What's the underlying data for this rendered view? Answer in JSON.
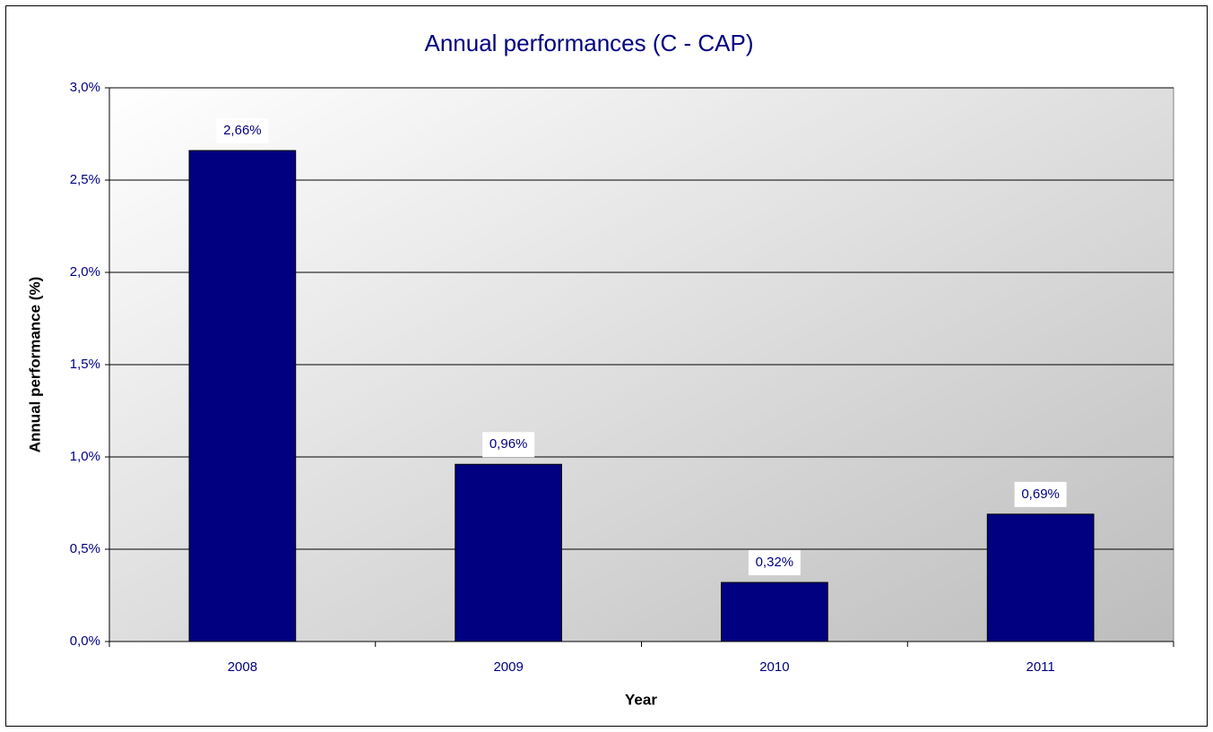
{
  "chart_data": {
    "type": "bar",
    "title": "Annual performances (C - CAP)",
    "x_label": "Year",
    "y_label": "Annual performance (%)",
    "categories": [
      "2008",
      "2009",
      "2010",
      "2011"
    ],
    "values": [
      2.66,
      0.96,
      0.32,
      0.69
    ],
    "value_labels": [
      "2,66%",
      "0,96%",
      "0,32%",
      "0,69%"
    ],
    "color": "#000080",
    "ylim": [
      0,
      3
    ],
    "yticks": [
      {
        "value": 0,
        "label": "0,0%"
      },
      {
        "value": 0.5,
        "label": "0,5%"
      },
      {
        "value": 1,
        "label": "1,0%"
      },
      {
        "value": 1.5,
        "label": "1,5%"
      },
      {
        "value": 2,
        "label": "2,0%"
      },
      {
        "value": 2.5,
        "label": "2,5%"
      },
      {
        "value": 3,
        "label": "3,0%"
      }
    ],
    "grid": true
  }
}
